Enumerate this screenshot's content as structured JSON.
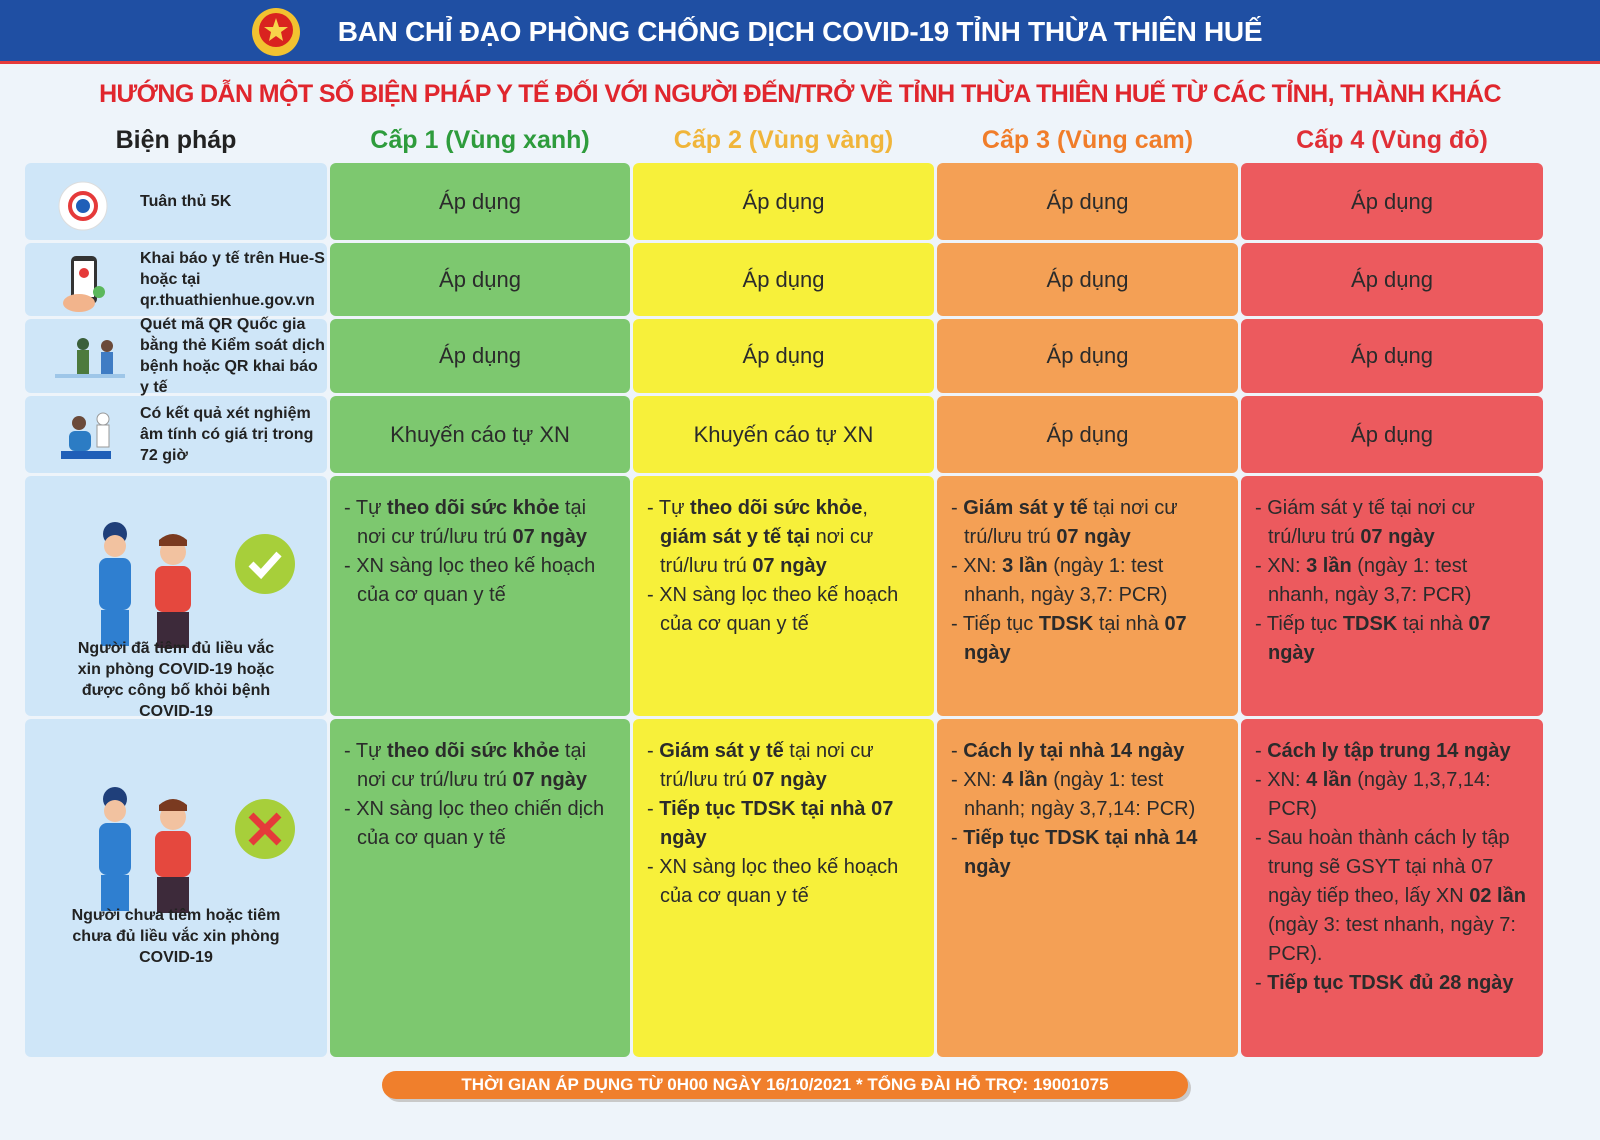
{
  "header": {
    "title": "BAN CHỈ ĐẠO PHÒNG CHỐNG DỊCH COVID-19 TỈNH THỪA THIÊN HUẾ"
  },
  "subtitle": "HƯỚNG DẪN MỘT SỐ BIỆN PHÁP Y TẾ ĐỐI VỚI NGƯỜI ĐẾN/TRỞ VỀ TỈNH THỪA THIÊN HUẾ TỪ CÁC TỈNH, THÀNH KHÁC",
  "table": {
    "columns": [
      "Biện pháp",
      "Cấp 1 (Vùng xanh)",
      "Cấp 2 (Vùng vàng)",
      "Cấp 3 (Vùng cam)",
      "Cấp 4 (Vùng đỏ)"
    ],
    "rows": [
      {
        "label": "Tuân thủ 5K",
        "cells": [
          "Áp dụng",
          "Áp dụng",
          "Áp dụng",
          "Áp dụng"
        ]
      },
      {
        "label": "Khai báo y tế trên Hue-S hoặc tại qr.thuathienhue.gov.vn",
        "cells": [
          "Áp dụng",
          "Áp dụng",
          "Áp dụng",
          "Áp dụng"
        ]
      },
      {
        "label": "Quét mã QR Quốc gia bằng thẻ Kiểm soát dịch bệnh hoặc QR khai báo y tế",
        "cells": [
          "Áp dụng",
          "Áp dụng",
          "Áp dụng",
          "Áp dụng"
        ]
      },
      {
        "label": "Có kết quả xét nghiệm âm tính có giá trị trong 72 giờ",
        "cells": [
          "Khuyến cáo tự XN",
          "Khuyến cáo tự XN",
          "Áp dụng",
          "Áp dụng"
        ]
      },
      {
        "label": "Người đã tiêm đủ liều vắc xin phòng COVID-19 hoặc được công bố khỏi bệnh COVID-19",
        "cells": [
          [
            [
              "- Tự ",
              {
                "text": "theo dõi sức khỏe",
                "bold": true
              },
              " tại nơi cư trú/lưu trú ",
              {
                "text": "07 ngày",
                "bold": true
              }
            ],
            [
              "- XN sàng lọc theo kế hoạch của cơ quan y tế"
            ]
          ],
          [
            [
              "- Tự ",
              {
                "text": "theo dõi sức khỏe",
                "bold": true
              },
              ", ",
              {
                "text": "giám sát y tế tại",
                "bold": true
              },
              " nơi cư trú/lưu trú ",
              {
                "text": "07 ngày",
                "bold": true
              }
            ],
            [
              "- XN sàng lọc theo kế hoạch của cơ quan y tế"
            ]
          ],
          [
            [
              "- ",
              {
                "text": "Giám sát y tế",
                "bold": true
              },
              " tại nơi cư trú/lưu trú ",
              {
                "text": "07 ngày",
                "bold": true
              }
            ],
            [
              "- XN: ",
              {
                "text": "3 lần",
                "bold": true
              },
              " (ngày 1: test nhanh, ngày 3,7: PCR)"
            ],
            [
              "- Tiếp tục ",
              {
                "text": "TDSK",
                "bold": true
              },
              " tại nhà ",
              {
                "text": "07 ngày",
                "bold": true
              }
            ]
          ],
          [
            [
              "- Giám sát y tế tại nơi cư trú/lưu trú ",
              {
                "text": "07 ngày",
                "bold": true
              }
            ],
            [
              "- XN: ",
              {
                "text": "3 lần",
                "bold": true
              },
              " (ngày 1: test nhanh, ngày 3,7: PCR)"
            ],
            [
              "- Tiếp tục ",
              {
                "text": "TDSK",
                "bold": true
              },
              " tại nhà ",
              {
                "text": "07 ngày",
                "bold": true
              }
            ]
          ]
        ]
      },
      {
        "label": "Người chưa tiêm hoặc tiêm chưa đủ liều vắc xin phòng COVID-19",
        "cells": [
          [
            [
              "- Tự ",
              {
                "text": "theo dõi sức khỏe",
                "bold": true
              },
              " tại nơi cư trú/lưu trú ",
              {
                "text": "07 ngày",
                "bold": true
              }
            ],
            [
              "- XN sàng lọc theo chiến dịch của cơ quan y tế"
            ]
          ],
          [
            [
              "- ",
              {
                "text": "Giám sát y tế",
                "bold": true
              },
              " tại nơi cư trú/lưu trú ",
              {
                "text": "07 ngày",
                "bold": true
              }
            ],
            [
              "- ",
              {
                "text": "Tiếp tục TDSK tại nhà 07 ngày",
                "bold": true
              }
            ],
            [
              "- XN sàng lọc theo kế hoạch của cơ quan y tế"
            ]
          ],
          [
            [
              "- ",
              {
                "text": "Cách ly tại nhà 14 ngày",
                "bold": true
              }
            ],
            [
              "- XN: ",
              {
                "text": "4 lần",
                "bold": true
              },
              " (ngày 1: test nhanh; ngày 3,7,14: PCR)"
            ],
            [
              "- ",
              {
                "text": "Tiếp tục TDSK tại nhà 14 ngày",
                "bold": true
              }
            ]
          ],
          [
            [
              "- ",
              {
                "text": "Cách ly tập trung 14 ngày",
                "bold": true
              }
            ],
            [
              "- XN: ",
              {
                "text": "4 lần",
                "bold": true
              },
              " (ngày 1,3,7,14: PCR)"
            ],
            [
              "- Sau hoàn thành cách ly tập trung sẽ GSYT tại nhà 07 ngày tiếp theo, lấy XN ",
              {
                "text": "02 lần",
                "bold": true
              },
              " (ngày 3: test nhanh, ngày 7: PCR)."
            ],
            [
              "- ",
              {
                "text": "Tiếp tục TDSK đủ 28 ngày",
                "bold": true
              }
            ]
          ]
        ]
      }
    ]
  },
  "footer": "THỜI GIAN ÁP DỤNG TỪ 0H00 NGÀY 16/10/2021 * TỔNG ĐÀI HỖ TRỢ: 19001075"
}
